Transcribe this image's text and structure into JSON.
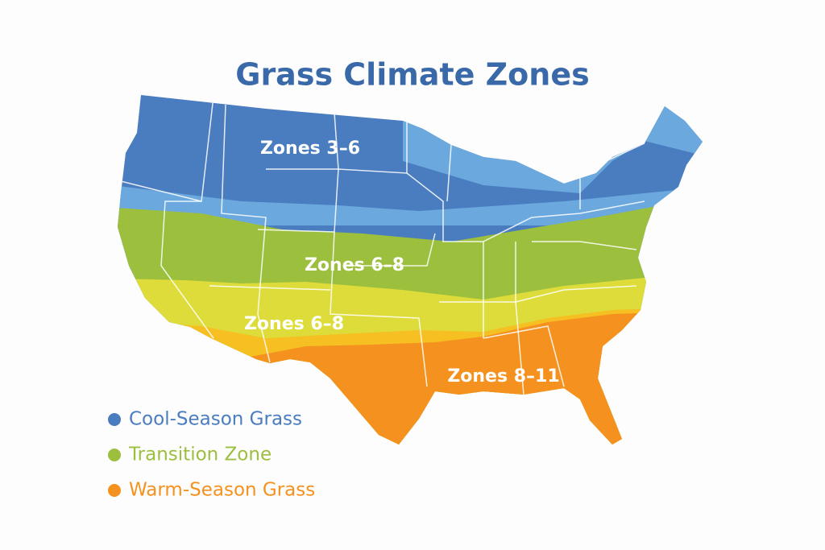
{
  "title": "Grass Climate Zones",
  "zone_labels": [
    "Zones 3–6",
    "Zones 6–8",
    "Zones 6–8",
    "Zones 8–11"
  ],
  "legend": [
    {
      "label": "Cool-Season Grass",
      "color": "#4a7cc0"
    },
    {
      "label": "Transition Zone",
      "color": "#9cbf3e"
    },
    {
      "label": "Warm-Season Grass",
      "color": "#f5911e"
    }
  ]
}
